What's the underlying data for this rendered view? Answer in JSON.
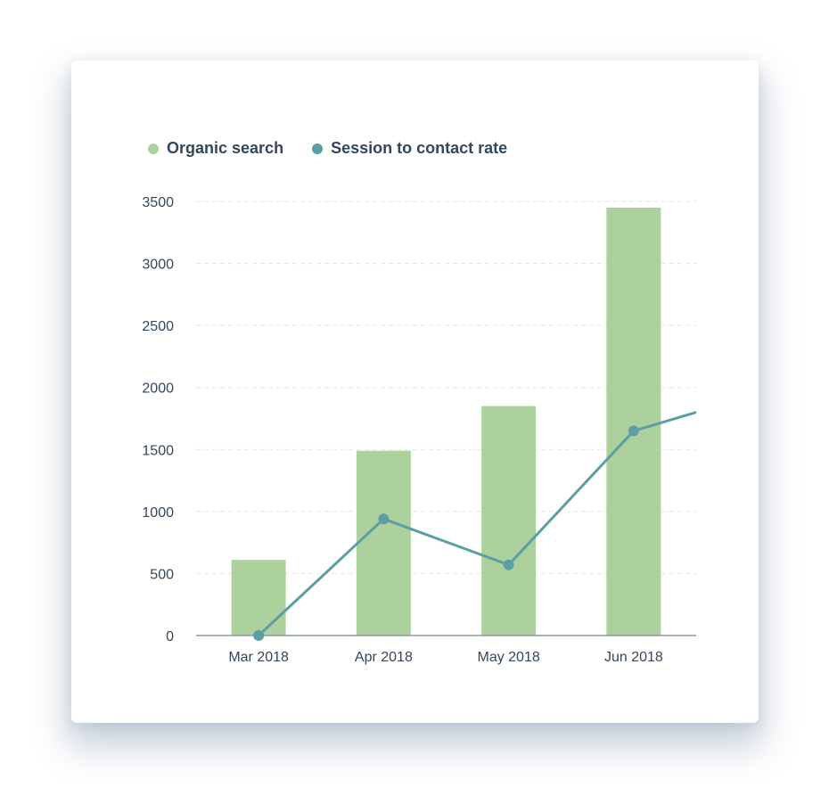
{
  "colors": {
    "bar": "#add19c",
    "line": "#5b9ea4",
    "grid": "#e3e8ee",
    "axis": "#8a98a8",
    "text": "#33475b"
  },
  "chart_data": {
    "type": "bar",
    "categories": [
      "Mar 2018",
      "Apr 2018",
      "May 2018",
      "Jun 2018"
    ],
    "series": [
      {
        "name": "Organic search",
        "type": "bar",
        "values": [
          610,
          1490,
          1850,
          3450
        ]
      },
      {
        "name": "Session to contact rate",
        "type": "line",
        "values": [
          0,
          940,
          570,
          1650
        ],
        "continues_beyond_last_to": 1800
      }
    ],
    "y_ticks": [
      "0",
      "500",
      "1000",
      "1500",
      "2000",
      "2500",
      "3000",
      "3500"
    ],
    "ylim": [
      0,
      3500
    ],
    "grid": true,
    "legend": "top-left"
  }
}
